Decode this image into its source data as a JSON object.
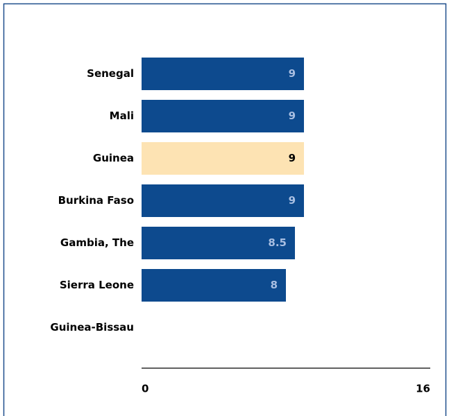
{
  "chart_data": {
    "type": "bar",
    "orientation": "horizontal",
    "categories": [
      "Senegal",
      "Mali",
      "Guinea",
      "Burkina Faso",
      "Gambia, The",
      "Sierra Leone",
      "Guinea-Bissau"
    ],
    "values": [
      9,
      9,
      9,
      9,
      8.5,
      8,
      null
    ],
    "colors": [
      "#0d4a8e",
      "#0d4a8e",
      "#fde3b3",
      "#0d4a8e",
      "#0d4a8e",
      "#0d4a8e",
      "#0d4a8e"
    ],
    "xlim": [
      0,
      16
    ],
    "xticks": [
      0,
      16
    ],
    "grid": false
  }
}
